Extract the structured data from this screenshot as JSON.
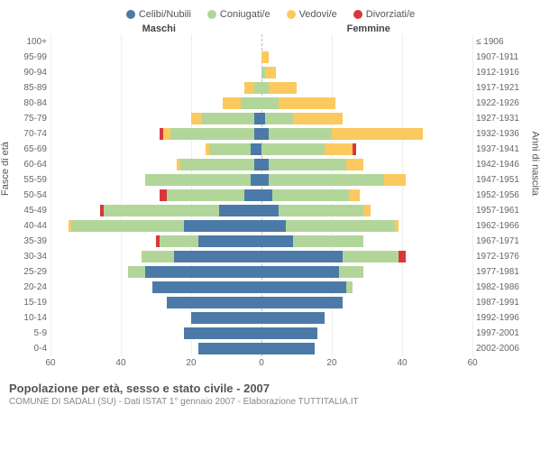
{
  "legend": [
    {
      "label": "Celibi/Nubili",
      "color": "#4c7aa8"
    },
    {
      "label": "Coniugati/e",
      "color": "#b2d69a"
    },
    {
      "label": "Vedovi/e",
      "color": "#fbc95e"
    },
    {
      "label": "Divorziati/e",
      "color": "#d8383a"
    }
  ],
  "header_left": "Maschi",
  "header_right": "Femmine",
  "y_left_title": "Fasce di età",
  "y_right_title": "Anni di nascita",
  "x_max": 60,
  "x_ticks": [
    60,
    40,
    20,
    0,
    20,
    40,
    60
  ],
  "rows": [
    {
      "age": "100+",
      "birth": "≤ 1906",
      "m": [
        0,
        0,
        0,
        0
      ],
      "f": [
        0,
        0,
        0,
        0
      ]
    },
    {
      "age": "95-99",
      "birth": "1907-1911",
      "m": [
        0,
        0,
        0,
        0
      ],
      "f": [
        0,
        0,
        2,
        0
      ]
    },
    {
      "age": "90-94",
      "birth": "1912-1916",
      "m": [
        0,
        0,
        0,
        0
      ],
      "f": [
        0,
        1,
        3,
        0
      ]
    },
    {
      "age": "85-89",
      "birth": "1917-1921",
      "m": [
        0,
        2,
        3,
        0
      ],
      "f": [
        0,
        2,
        8,
        0
      ]
    },
    {
      "age": "80-84",
      "birth": "1922-1926",
      "m": [
        0,
        6,
        5,
        0
      ],
      "f": [
        0,
        5,
        16,
        0
      ]
    },
    {
      "age": "75-79",
      "birth": "1927-1931",
      "m": [
        2,
        15,
        3,
        0
      ],
      "f": [
        1,
        8,
        14,
        0
      ]
    },
    {
      "age": "70-74",
      "birth": "1932-1936",
      "m": [
        2,
        24,
        2,
        1
      ],
      "f": [
        2,
        18,
        26,
        0
      ]
    },
    {
      "age": "65-69",
      "birth": "1937-1941",
      "m": [
        3,
        12,
        1,
        0
      ],
      "f": [
        0,
        18,
        8,
        1
      ]
    },
    {
      "age": "60-64",
      "birth": "1942-1946",
      "m": [
        2,
        21,
        1,
        0
      ],
      "f": [
        2,
        22,
        5,
        0
      ]
    },
    {
      "age": "55-59",
      "birth": "1947-1951",
      "m": [
        3,
        30,
        0,
        0
      ],
      "f": [
        2,
        33,
        6,
        0
      ]
    },
    {
      "age": "50-54",
      "birth": "1952-1956",
      "m": [
        5,
        22,
        0,
        2
      ],
      "f": [
        3,
        22,
        3,
        0
      ]
    },
    {
      "age": "45-49",
      "birth": "1957-1961",
      "m": [
        12,
        33,
        0,
        1
      ],
      "f": [
        5,
        24,
        2,
        0
      ]
    },
    {
      "age": "40-44",
      "birth": "1962-1966",
      "m": [
        22,
        32,
        1,
        0
      ],
      "f": [
        7,
        31,
        1,
        0
      ]
    },
    {
      "age": "35-39",
      "birth": "1967-1971",
      "m": [
        18,
        11,
        0,
        1
      ],
      "f": [
        9,
        20,
        0,
        0
      ]
    },
    {
      "age": "30-34",
      "birth": "1972-1976",
      "m": [
        25,
        9,
        0,
        0
      ],
      "f": [
        23,
        16,
        0,
        2
      ]
    },
    {
      "age": "25-29",
      "birth": "1977-1981",
      "m": [
        33,
        5,
        0,
        0
      ],
      "f": [
        22,
        7,
        0,
        0
      ]
    },
    {
      "age": "20-24",
      "birth": "1982-1986",
      "m": [
        31,
        0,
        0,
        0
      ],
      "f": [
        24,
        2,
        0,
        0
      ]
    },
    {
      "age": "15-19",
      "birth": "1987-1991",
      "m": [
        27,
        0,
        0,
        0
      ],
      "f": [
        23,
        0,
        0,
        0
      ]
    },
    {
      "age": "10-14",
      "birth": "1992-1996",
      "m": [
        20,
        0,
        0,
        0
      ],
      "f": [
        18,
        0,
        0,
        0
      ]
    },
    {
      "age": "5-9",
      "birth": "1997-2001",
      "m": [
        22,
        0,
        0,
        0
      ],
      "f": [
        16,
        0,
        0,
        0
      ]
    },
    {
      "age": "0-4",
      "birth": "2002-2006",
      "m": [
        18,
        0,
        0,
        0
      ],
      "f": [
        15,
        0,
        0,
        0
      ]
    }
  ],
  "footer_title": "Popolazione per età, sesso e stato civile - 2007",
  "footer_sub": "COMUNE DI SADALI (SU) - Dati ISTAT 1° gennaio 2007 - Elaborazione TUTTITALIA.IT",
  "colors": {
    "background": "#ffffff",
    "grid": "#eeeeee",
    "centerline": "#bbbbbb",
    "text": "#666666"
  }
}
